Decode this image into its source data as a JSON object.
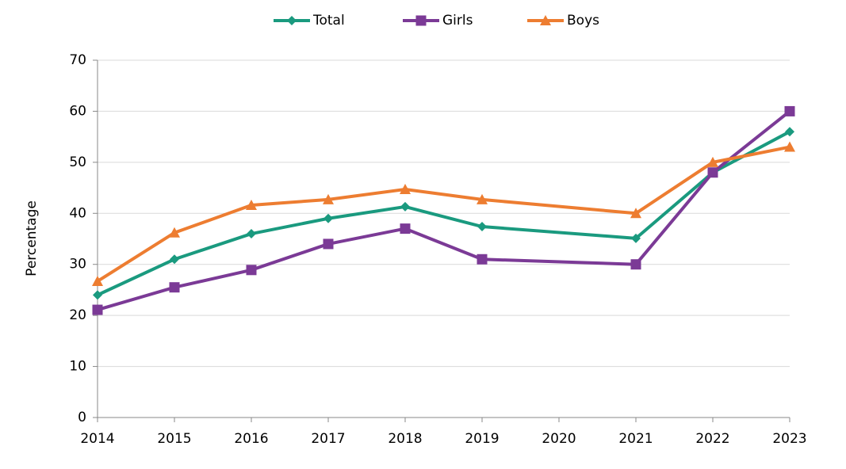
{
  "chart_data": {
    "type": "line",
    "y_label": "Percentage",
    "x": [
      2014,
      2015,
      2016,
      2017,
      2018,
      2019,
      2021,
      2022,
      2023
    ],
    "xlim": [
      2014,
      2023
    ],
    "xticks": [
      2014,
      2015,
      2016,
      2017,
      2018,
      2019,
      2020,
      2021,
      2022,
      2023
    ],
    "ylim": [
      0,
      70
    ],
    "yticks": [
      0,
      10,
      20,
      30,
      40,
      50,
      60,
      70
    ],
    "grid": true,
    "legend": "top",
    "series": [
      {
        "name": "Total",
        "color": "#1a9a7f",
        "marker": "diamond",
        "values": [
          24,
          31,
          36,
          39,
          41.3,
          37.4,
          35.1,
          48,
          56
        ]
      },
      {
        "name": "Girls",
        "color": "#7b3a96",
        "marker": "square",
        "values": [
          21.1,
          25.5,
          28.9,
          34,
          37,
          31,
          30,
          48,
          60
        ]
      },
      {
        "name": "Boys",
        "color": "#ed7d31",
        "marker": "triangle",
        "values": [
          26.7,
          36.2,
          41.6,
          42.7,
          44.7,
          42.7,
          40,
          50,
          53
        ]
      }
    ]
  }
}
